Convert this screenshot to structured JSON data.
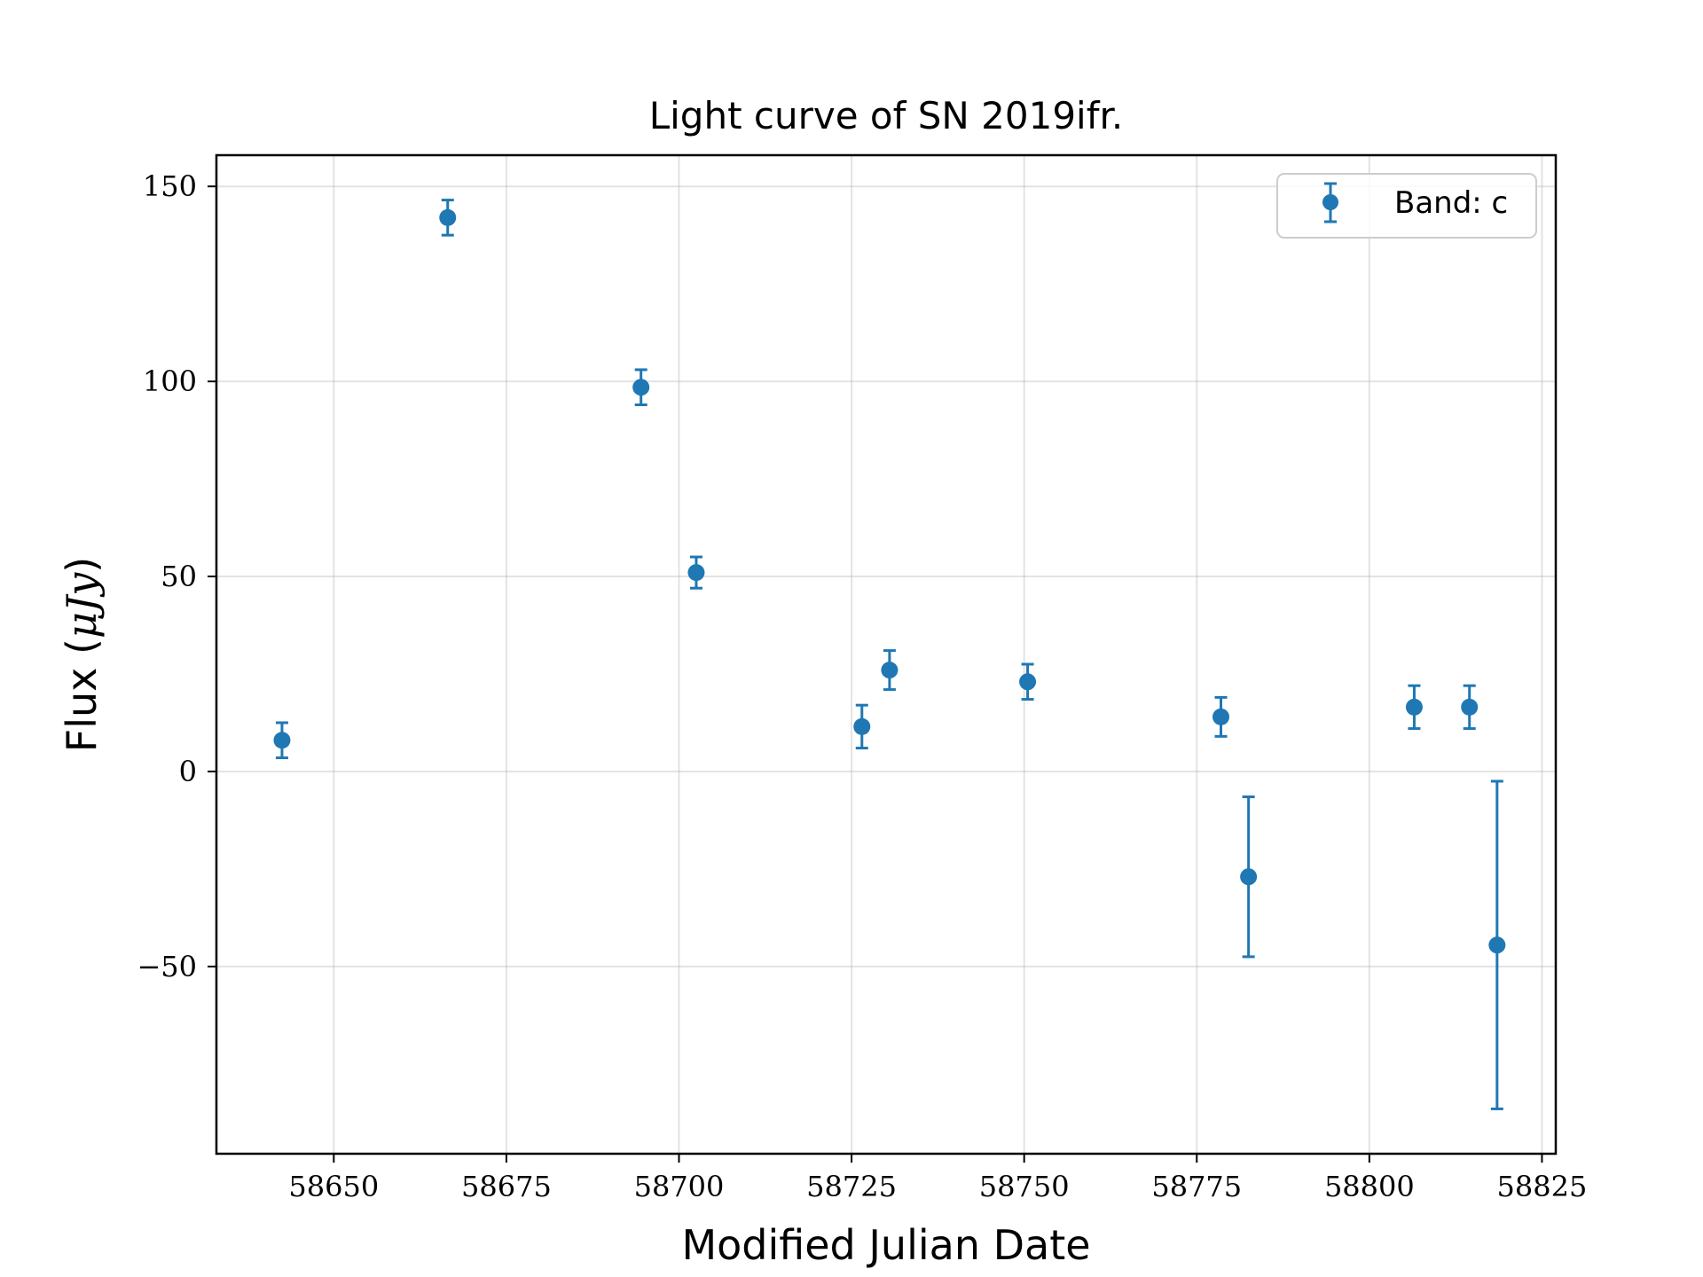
{
  "chart_data": {
    "type": "scatter",
    "title": "Light curve of SN 2019ifr.",
    "xlabel": "Modified Julian Date",
    "ylabel": {
      "prefix": "Flux (",
      "math": "μJy",
      "suffix": ")"
    },
    "xlim": [
      58633,
      58827
    ],
    "ylim": [
      -98,
      158
    ],
    "xticks": [
      58650,
      58675,
      58700,
      58725,
      58750,
      58775,
      58800,
      58825
    ],
    "yticks": [
      -50,
      0,
      50,
      100,
      150
    ],
    "ytick_labels": [
      "−50",
      "0",
      "50",
      "100",
      "150"
    ],
    "grid": true,
    "legend": {
      "position": "top-right",
      "label": "Band: c"
    },
    "color": "#1f77b4",
    "series": [
      {
        "name": "Band: c",
        "points": [
          {
            "x": 58642.5,
            "y": 8.0,
            "err": 4.5
          },
          {
            "x": 58666.5,
            "y": 142.0,
            "err": 4.5
          },
          {
            "x": 58694.5,
            "y": 98.5,
            "err": 4.5
          },
          {
            "x": 58702.5,
            "y": 51.0,
            "err": 4.0
          },
          {
            "x": 58726.5,
            "y": 11.5,
            "err": 5.5
          },
          {
            "x": 58730.5,
            "y": 26.0,
            "err": 5.0
          },
          {
            "x": 58750.5,
            "y": 23.0,
            "err": 4.5
          },
          {
            "x": 58778.5,
            "y": 14.0,
            "err": 5.0
          },
          {
            "x": 58782.5,
            "y": -27.0,
            "err": 20.5
          },
          {
            "x": 58806.5,
            "y": 16.5,
            "err": 5.5
          },
          {
            "x": 58814.5,
            "y": 16.5,
            "err": 5.5
          },
          {
            "x": 58818.5,
            "y": -44.5,
            "err": 42.0
          }
        ]
      }
    ]
  }
}
